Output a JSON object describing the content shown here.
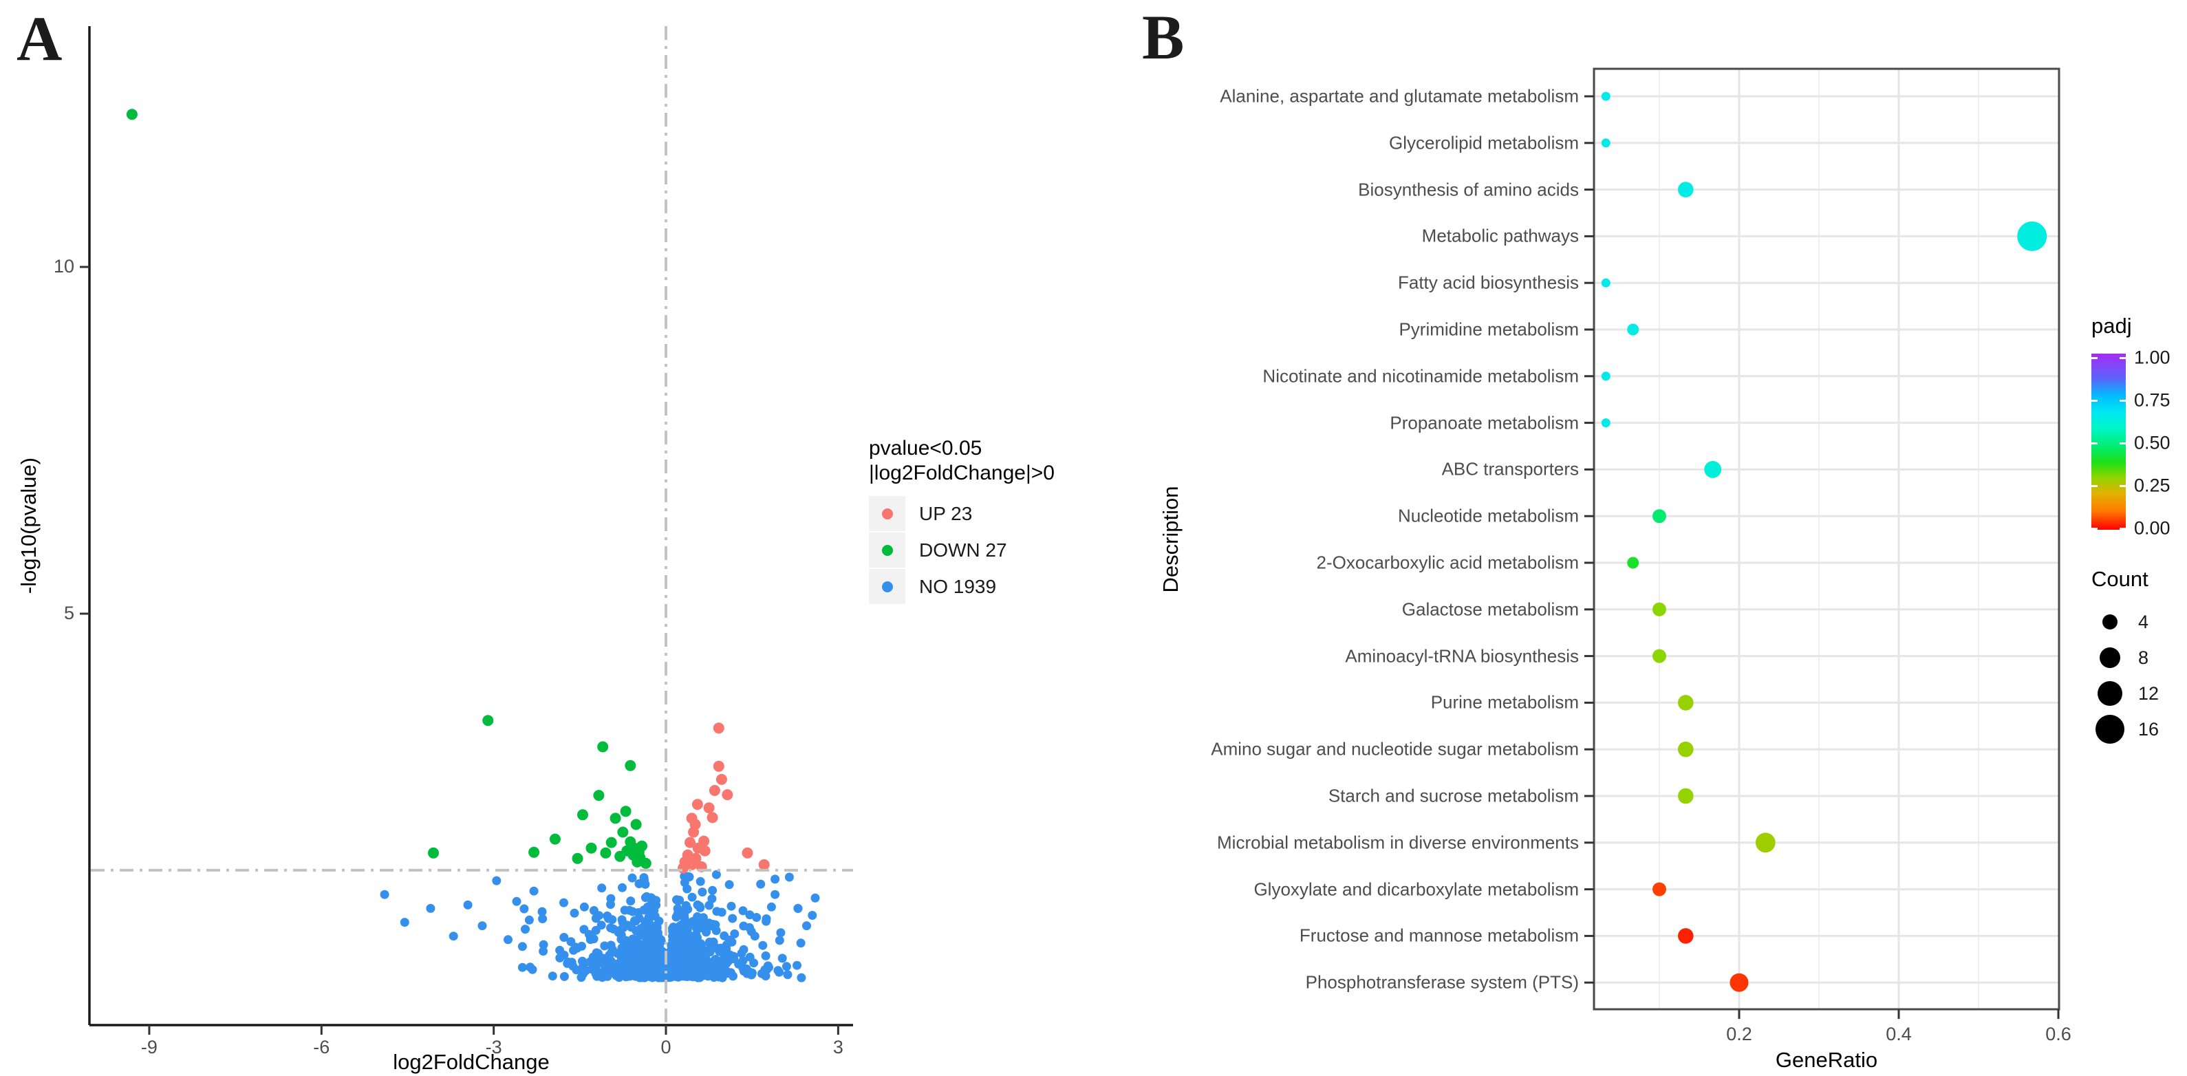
{
  "page": {
    "background": "#ffffff"
  },
  "panels": {
    "a": {
      "tag": "A",
      "xlabel": "log2FoldChange",
      "ylabel": "-log10(pvalue)",
      "legend_title_line1": "pvalue<0.05",
      "legend_title_line2": "|log2FoldChange|>0",
      "legend": [
        {
          "label": "UP 23",
          "color": "#F8766D"
        },
        {
          "label": "DOWN 27",
          "color": "#00BB3C"
        },
        {
          "label": "NO 1939",
          "color": "#3490EC"
        }
      ]
    },
    "b": {
      "tag": "B",
      "xlabel": "GeneRatio",
      "ylabel": "Description",
      "color_legend": {
        "title": "padj",
        "labels": [
          "1.00",
          "0.75",
          "0.50",
          "0.25",
          "0.00"
        ],
        "gradient_stops": [
          [
            0.0,
            "#FF0000"
          ],
          [
            0.11,
            "#FF7E00"
          ],
          [
            0.21,
            "#E0B300"
          ],
          [
            0.3,
            "#8CD600"
          ],
          [
            0.38,
            "#21DE16"
          ],
          [
            0.47,
            "#00EC6E"
          ],
          [
            0.57,
            "#00F6C3"
          ],
          [
            0.67,
            "#00E7F2"
          ],
          [
            0.76,
            "#00BDFF"
          ],
          [
            0.86,
            "#5E62FB"
          ],
          [
            1.0,
            "#A42CF4"
          ]
        ]
      },
      "size_legend": {
        "title": "Count",
        "values": [
          4,
          8,
          12,
          16
        ]
      }
    }
  },
  "chart_data": [
    {
      "type": "scatter",
      "name": "volcano-plot",
      "xlabel": "log2FoldChange",
      "ylabel": "-log10(pvalue)",
      "xlim": [
        -10.5,
        3.3
      ],
      "ylim": [
        -0.95,
        13.5
      ],
      "x_ticks": [
        -9,
        -6,
        -3,
        0,
        3
      ],
      "y_ticks": [
        5,
        10
      ],
      "grid": false,
      "threshold_lines": {
        "vline_x": 0,
        "hline_y": 1.301,
        "style": "dash-dot",
        "color": "#C2C2C2"
      },
      "series": [
        {
          "name": "UP 23",
          "color": "#F8766D",
          "radius": 8,
          "points": [
            [
              0.92,
              3.35
            ],
            [
              0.97,
              2.61
            ],
            [
              1.07,
              2.39
            ],
            [
              0.92,
              2.8
            ],
            [
              0.81,
              2.06
            ],
            [
              0.51,
              1.96
            ],
            [
              0.66,
              1.72
            ],
            [
              0.45,
              2.05
            ],
            [
              0.85,
              2.45
            ],
            [
              0.75,
              2.2
            ],
            [
              0.55,
              2.25
            ],
            [
              0.48,
              1.85
            ],
            [
              0.42,
              1.7
            ],
            [
              0.56,
              1.62
            ],
            [
              0.68,
              1.58
            ],
            [
              0.38,
              1.52
            ],
            [
              0.52,
              1.47
            ],
            [
              0.33,
              1.42
            ],
            [
              0.45,
              1.38
            ],
            [
              0.62,
              1.35
            ],
            [
              1.42,
              1.55
            ],
            [
              1.71,
              1.38
            ],
            [
              0.3,
              1.33
            ]
          ]
        },
        {
          "name": "DOWN 27",
          "color": "#00BB3C",
          "radius": 8,
          "points": [
            [
              -9.3,
              12.2
            ],
            [
              -3.1,
              3.46
            ],
            [
              -1.1,
              3.08
            ],
            [
              -0.62,
              2.81
            ],
            [
              -1.17,
              2.38
            ],
            [
              -1.93,
              1.75
            ],
            [
              -1.54,
              1.47
            ],
            [
              -2.3,
              1.56
            ],
            [
              -4.05,
              1.55
            ],
            [
              -0.52,
              1.96
            ],
            [
              -0.62,
              1.71
            ],
            [
              -0.57,
              1.52
            ],
            [
              -0.45,
              1.48
            ],
            [
              -0.5,
              1.42
            ],
            [
              -0.55,
              1.62
            ],
            [
              -0.47,
              1.56
            ],
            [
              -0.35,
              1.4
            ],
            [
              -0.42,
              1.65
            ],
            [
              -0.68,
              1.58
            ],
            [
              -0.8,
              1.5
            ],
            [
              -0.95,
              1.7
            ],
            [
              -1.05,
              1.55
            ],
            [
              -1.3,
              1.62
            ],
            [
              -0.75,
              1.85
            ],
            [
              -0.88,
              2.05
            ],
            [
              -0.7,
              2.15
            ],
            [
              -1.45,
              2.1
            ]
          ]
        },
        {
          "name": "NO 1939",
          "color": "#3490EC",
          "radius": 6.5,
          "points": [
            [
              -4.9,
              0.95
            ],
            [
              -4.55,
              0.55
            ],
            [
              -4.1,
              0.75
            ],
            [
              -3.7,
              0.35
            ],
            [
              -3.45,
              0.8
            ],
            [
              -3.2,
              0.5
            ],
            [
              -2.95,
              1.15
            ],
            [
              -2.75,
              0.3
            ],
            [
              -2.6,
              0.85
            ],
            [
              -2.45,
              0.45
            ],
            [
              -2.3,
              1.0
            ],
            [
              -2.15,
              0.6
            ],
            [
              -2.5,
              0.2
            ],
            [
              2.6,
              0.9
            ],
            [
              2.45,
              0.5
            ],
            [
              2.3,
              0.75
            ],
            [
              2.15,
              1.2
            ],
            [
              2.0,
              0.4
            ],
            [
              1.9,
              0.95
            ],
            [
              1.75,
              0.6
            ],
            [
              1.65,
              1.1
            ],
            [
              2.35,
              0.25
            ],
            [
              1.55,
              0.35
            ],
            [
              2.55,
              0.65
            ]
          ],
          "dense_cluster": {
            "n": 900,
            "seed": 11,
            "v_min": -0.25,
            "v_mean": 0.38,
            "v_max": 1.26,
            "notch_base": 0.04,
            "notch_slope": 0.14,
            "x_spread": 0.5,
            "x_max": 2.55
          }
        }
      ]
    },
    {
      "type": "scatter",
      "name": "kegg-enrichment-dotplot",
      "xlabel": "GeneRatio",
      "ylabel": "Description",
      "xlim": [
        0.018,
        0.605
      ],
      "x_ticks": [
        0.2,
        0.4,
        0.6
      ],
      "grid": true,
      "legend_position": "right",
      "rows": [
        {
          "pathway": "Alanine, aspartate and glutamate metabolism",
          "gene_ratio": 0.033,
          "count": 1,
          "padj": 0.65
        },
        {
          "pathway": "Glycerolipid metabolism",
          "gene_ratio": 0.033,
          "count": 1,
          "padj": 0.65
        },
        {
          "pathway": "Biosynthesis of amino acids",
          "gene_ratio": 0.133,
          "count": 4,
          "padj": 0.64
        },
        {
          "pathway": "Metabolic pathways",
          "gene_ratio": 0.567,
          "count": 17,
          "padj": 0.63
        },
        {
          "pathway": "Fatty acid biosynthesis",
          "gene_ratio": 0.033,
          "count": 1,
          "padj": 0.65
        },
        {
          "pathway": "Pyrimidine metabolism",
          "gene_ratio": 0.067,
          "count": 2,
          "padj": 0.64
        },
        {
          "pathway": "Nicotinate and nicotinamide metabolism",
          "gene_ratio": 0.033,
          "count": 1,
          "padj": 0.65
        },
        {
          "pathway": "Propanoate metabolism",
          "gene_ratio": 0.033,
          "count": 1,
          "padj": 0.65
        },
        {
          "pathway": "ABC transporters",
          "gene_ratio": 0.167,
          "count": 5,
          "padj": 0.62
        },
        {
          "pathway": "Nucleotide metabolism",
          "gene_ratio": 0.1,
          "count": 3,
          "padj": 0.47
        },
        {
          "pathway": "2-Oxocarboxylic acid metabolism",
          "gene_ratio": 0.067,
          "count": 2,
          "padj": 0.4
        },
        {
          "pathway": "Galactose metabolism",
          "gene_ratio": 0.1,
          "count": 3,
          "padj": 0.3
        },
        {
          "pathway": "Aminoacyl-tRNA biosynthesis",
          "gene_ratio": 0.1,
          "count": 3,
          "padj": 0.3
        },
        {
          "pathway": "Purine metabolism",
          "gene_ratio": 0.133,
          "count": 4,
          "padj": 0.29
        },
        {
          "pathway": "Amino sugar and nucleotide sugar metabolism",
          "gene_ratio": 0.133,
          "count": 4,
          "padj": 0.29
        },
        {
          "pathway": "Starch and sucrose metabolism",
          "gene_ratio": 0.133,
          "count": 4,
          "padj": 0.29
        },
        {
          "pathway": "Microbial metabolism in diverse environments",
          "gene_ratio": 0.233,
          "count": 7,
          "padj": 0.28
        },
        {
          "pathway": "Glyoxylate and dicarboxylate metabolism",
          "gene_ratio": 0.1,
          "count": 3,
          "padj": 0.055
        },
        {
          "pathway": "Fructose and mannose metabolism",
          "gene_ratio": 0.133,
          "count": 4,
          "padj": 0.03
        },
        {
          "pathway": "Phosphotransferase system (PTS)",
          "gene_ratio": 0.2,
          "count": 6,
          "padj": 0.045
        }
      ],
      "color_scale": {
        "title": "padj",
        "domain": [
          0,
          1
        ]
      },
      "size_scale": {
        "title": "Count",
        "legend_values": [
          4,
          8,
          12,
          16
        ]
      }
    }
  ]
}
